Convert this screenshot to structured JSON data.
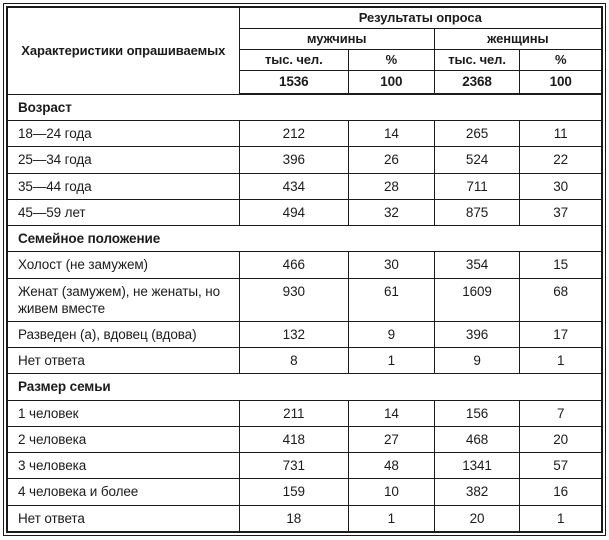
{
  "table": {
    "corner_header": "Характеристики опрашиваемых",
    "results_header": "Результаты опроса",
    "group_headers": [
      "мужчины",
      "женщины"
    ],
    "unit_headers": [
      "тыс. чел.",
      "%",
      "тыс. чел.",
      "%"
    ],
    "totals": [
      "1536",
      "100",
      "2368",
      "100"
    ],
    "sections": [
      {
        "title": "Возраст",
        "rows": [
          {
            "label": "18—24 года",
            "values": [
              "212",
              "14",
              "265",
              "11"
            ]
          },
          {
            "label": "25—34 года",
            "values": [
              "396",
              "26",
              "524",
              "22"
            ]
          },
          {
            "label": "35—44 года",
            "values": [
              "434",
              "28",
              "711",
              "30"
            ]
          },
          {
            "label": "45—59 лет",
            "values": [
              "494",
              "32",
              "875",
              "37"
            ]
          }
        ]
      },
      {
        "title": "Семейное положение",
        "rows": [
          {
            "label": "Холост (не замужем)",
            "values": [
              "466",
              "30",
              "354",
              "15"
            ]
          },
          {
            "label": "Женат (замужем), не женаты, но живем вместе",
            "values": [
              "930",
              "61",
              "1609",
              "68"
            ]
          },
          {
            "label": "Разведен (а), вдовец (вдова)",
            "values": [
              "132",
              "9",
              "396",
              "17"
            ]
          },
          {
            "label": "Нет ответа",
            "values": [
              "8",
              "1",
              "9",
              "1"
            ]
          }
        ]
      },
      {
        "title": "Размер семьи",
        "rows": [
          {
            "label": "1 человек",
            "values": [
              "211",
              "14",
              "156",
              "7"
            ]
          },
          {
            "label": "2 человека",
            "values": [
              "418",
              "27",
              "468",
              "20"
            ]
          },
          {
            "label": "3 человека",
            "values": [
              "731",
              "48",
              "1341",
              "57"
            ]
          },
          {
            "label": "4 человека и более",
            "values": [
              "159",
              "10",
              "382",
              "16"
            ]
          },
          {
            "label": "Нет ответа",
            "values": [
              "18",
              "1",
              "20",
              "1"
            ]
          }
        ]
      }
    ]
  },
  "colors": {
    "text": "#1b1b1b",
    "border": "#1b1b1b",
    "background": "#ffffff"
  }
}
